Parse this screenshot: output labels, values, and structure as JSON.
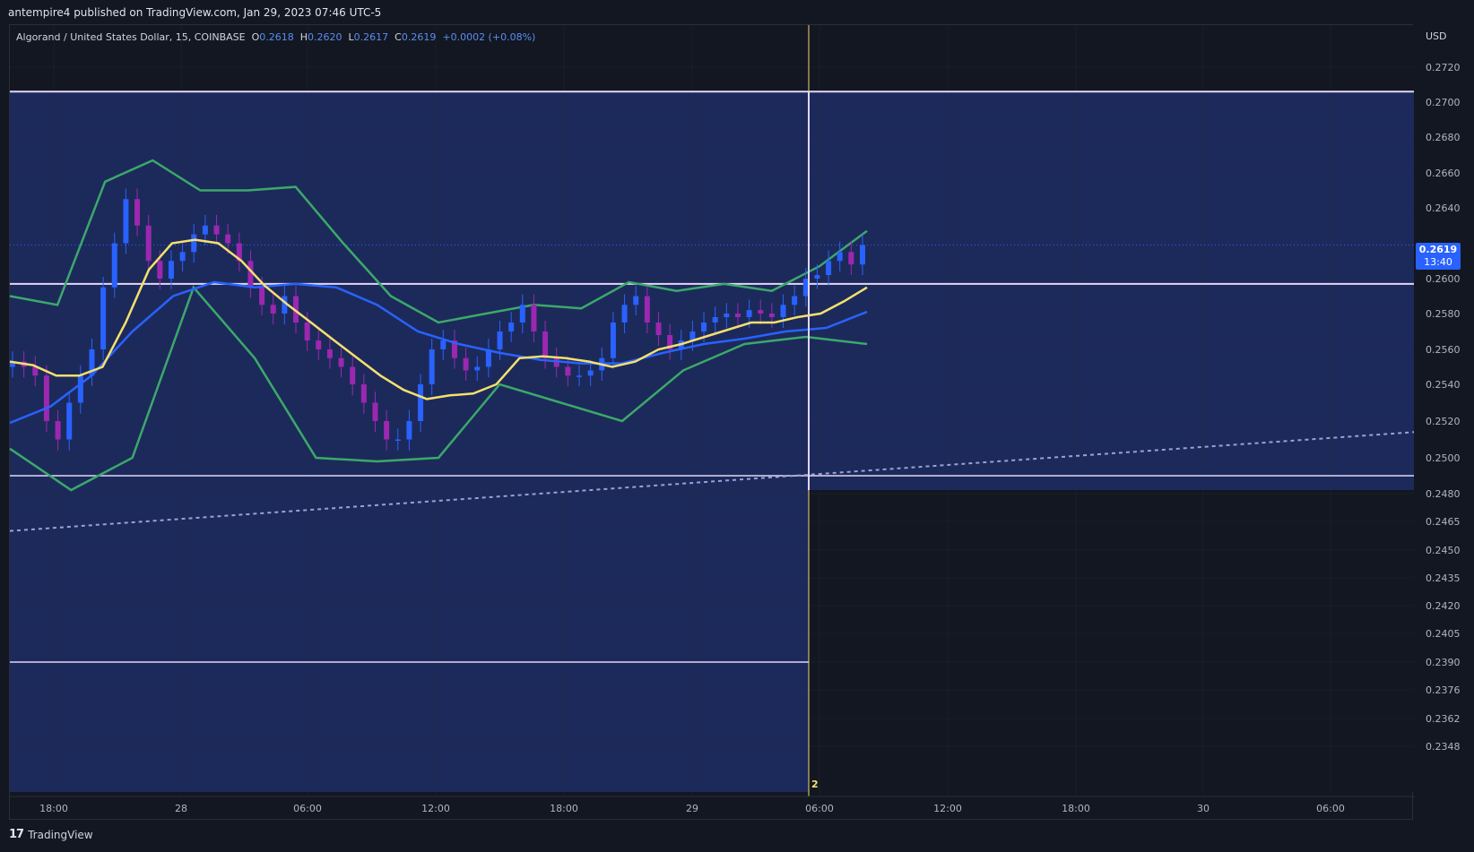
{
  "header": {
    "published_text": "antempire4 published on TradingView.com, Jan 29, 2023 07:46 UTC-5"
  },
  "legend": {
    "symbol": "Algorand / United States Dollar, 15, COINBASE",
    "o_label": "O",
    "o_value": "0.2618",
    "h_label": "H",
    "h_value": "0.2620",
    "l_label": "L",
    "l_value": "0.2617",
    "c_label": "C",
    "c_value": "0.2619",
    "change": "+0.0002 (+0.08%)"
  },
  "price_axis": {
    "currency": "USD",
    "last_price": "0.2619",
    "countdown": "13:40"
  },
  "cursor_label": "2",
  "footer": {
    "brand": "TradingView",
    "logo_icon": "17"
  },
  "colors": {
    "background": "#131722",
    "zone": "#1c2a5b",
    "candle_up": "#2962ff",
    "candle_down": "#9c27b0",
    "ma_fast": "#f5e06e",
    "ma_slow": "#2962ff",
    "bollinger": "#3ca86b",
    "level_line": "#e4d6f5",
    "cursor_line": "#f5d76e"
  },
  "chart_data": {
    "type": "line",
    "y_ticks": [
      "0.2720",
      "0.2700",
      "0.2680",
      "0.2660",
      "0.2640",
      "0.2600",
      "0.2580",
      "0.2560",
      "0.2540",
      "0.2520",
      "0.2500",
      "0.2480",
      "0.2465",
      "0.2450",
      "0.2435",
      "0.2420",
      "0.2405",
      "0.2390",
      "0.2376",
      "0.2362",
      "0.2348"
    ],
    "x_ticks": [
      "18:00",
      "28",
      "06:00",
      "12:00",
      "18:00",
      "29",
      "06:00",
      "12:00",
      "18:00",
      "30",
      "06:00"
    ],
    "horizontal_levels": [
      0.2706,
      0.2597,
      0.249,
      0.239
    ],
    "zone": {
      "top": 0.2706,
      "bottom": 0.2334
    },
    "last_price": 0.2619,
    "close_series": [
      0.2553,
      0.255,
      0.2545,
      0.252,
      0.251,
      0.253,
      0.2545,
      0.256,
      0.2595,
      0.262,
      0.2645,
      0.263,
      0.261,
      0.26,
      0.261,
      0.2615,
      0.2625,
      0.263,
      0.2625,
      0.262,
      0.261,
      0.2595,
      0.2585,
      0.258,
      0.259,
      0.2575,
      0.2565,
      0.256,
      0.2555,
      0.255,
      0.254,
      0.253,
      0.252,
      0.251,
      0.251,
      0.252,
      0.254,
      0.256,
      0.2565,
      0.2555,
      0.2548,
      0.255,
      0.256,
      0.257,
      0.2575,
      0.2585,
      0.257,
      0.2555,
      0.255,
      0.2545,
      0.2545,
      0.2548,
      0.2555,
      0.2575,
      0.2585,
      0.259,
      0.2575,
      0.2568,
      0.256,
      0.2565,
      0.257,
      0.2575,
      0.2578,
      0.258,
      0.2578,
      0.2582,
      0.258,
      0.2578,
      0.2585,
      0.259,
      0.26,
      0.2602,
      0.261,
      0.2615,
      0.2608,
      0.2619
    ],
    "ma_fast": [
      0.2553,
      0.2551,
      0.2545,
      0.2545,
      0.255,
      0.2575,
      0.2605,
      0.262,
      0.2622,
      0.262,
      0.261,
      0.2596,
      0.2585,
      0.2575,
      0.2565,
      0.2555,
      0.2545,
      0.2537,
      0.2532,
      0.2534,
      0.2535,
      0.254,
      0.2555,
      0.2556,
      0.2555,
      0.2553,
      0.255,
      0.2553,
      0.256,
      0.2563,
      0.2567,
      0.2571,
      0.2575,
      0.2575,
      0.2578,
      0.258,
      0.2587,
      0.2595
    ],
    "ma_slow": [
      0.2519,
      0.2528,
      0.2545,
      0.257,
      0.259,
      0.2598,
      0.2595,
      0.2597,
      0.2595,
      0.2585,
      0.257,
      0.2563,
      0.2558,
      0.2554,
      0.2552,
      0.2552,
      0.2558,
      0.2563,
      0.2566,
      0.257,
      0.2572,
      0.2581
    ],
    "bollinger_upper": [
      0.259,
      0.2585,
      0.2655,
      0.2667,
      0.265,
      0.265,
      0.2652,
      0.262,
      0.259,
      0.2575,
      0.258,
      0.2585,
      0.2583,
      0.2598,
      0.2593,
      0.2597,
      0.2593,
      0.2607,
      0.2627
    ],
    "bollinger_lower": [
      0.2505,
      0.2482,
      0.25,
      0.2595,
      0.2555,
      0.25,
      0.2498,
      0.25,
      0.254,
      0.253,
      0.252,
      0.2548,
      0.2563,
      0.2567,
      0.2563
    ],
    "trendline": {
      "from": 0.246,
      "to": 0.2514
    }
  }
}
